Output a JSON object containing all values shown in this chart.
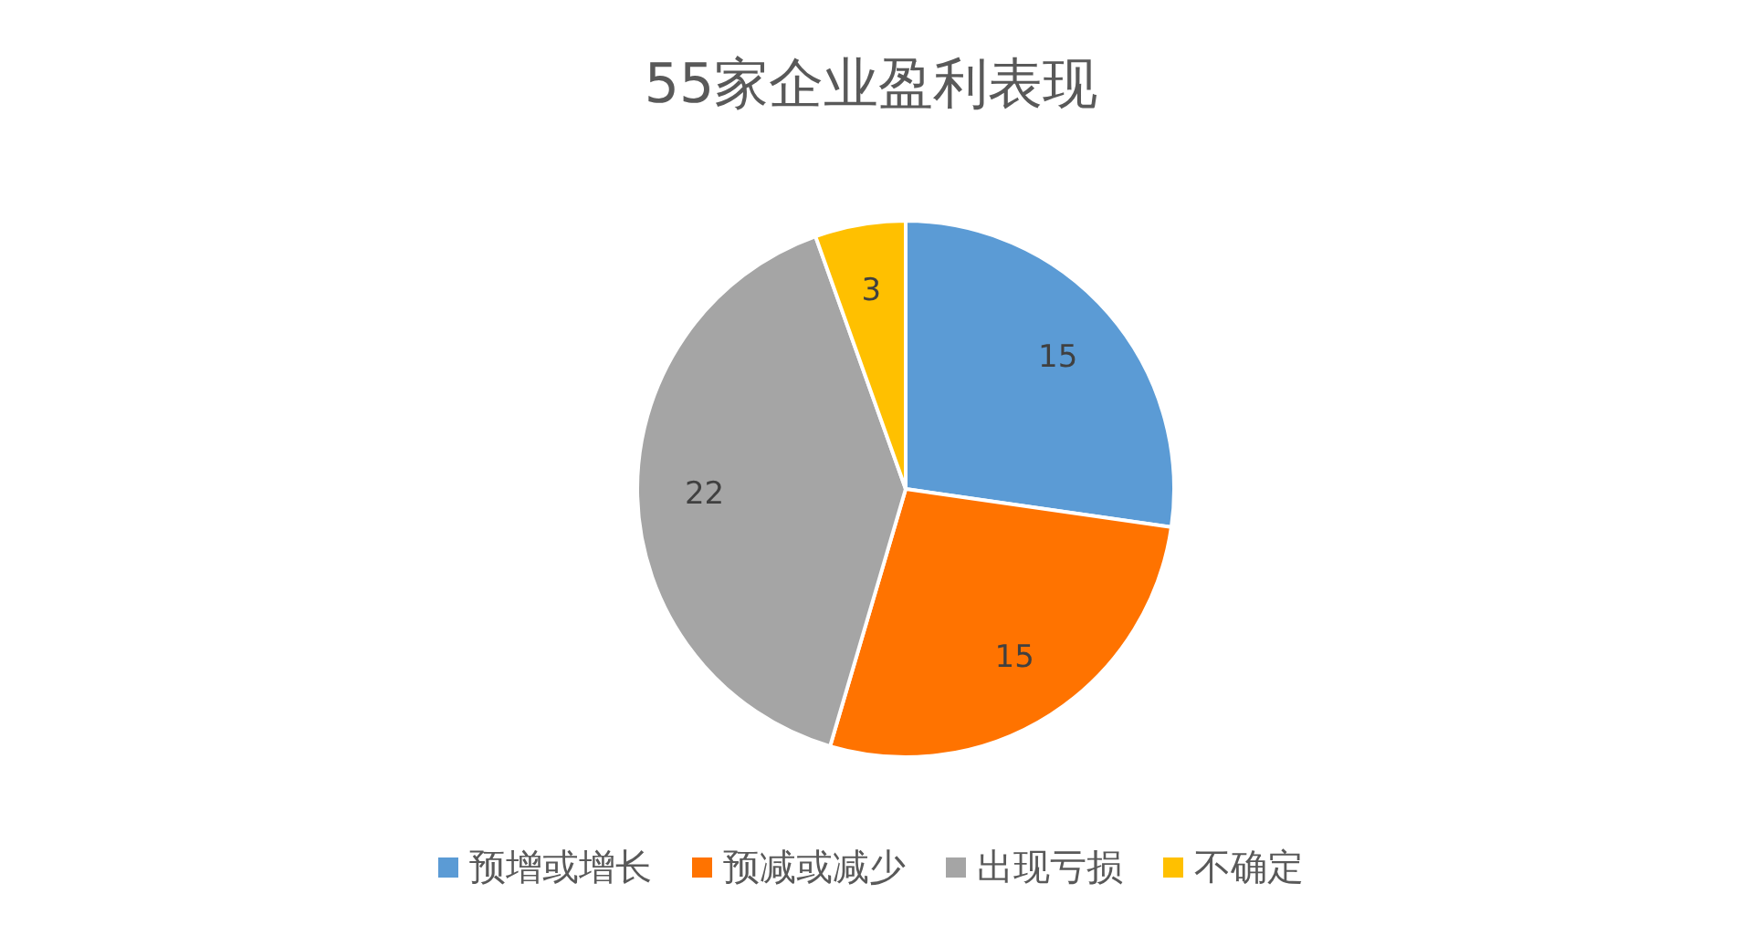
{
  "chart_data": {
    "type": "pie",
    "title": "55家企业盈利表现",
    "categories": [
      "预增或增长",
      "预减或减少",
      "出现亏损",
      "不确定"
    ],
    "values": [
      15,
      15,
      22,
      3
    ],
    "colors": [
      "#5b9bd5",
      "#ff7300",
      "#a5a5a5",
      "#ffc000"
    ],
    "data_labels": true,
    "legend": "bottom"
  }
}
